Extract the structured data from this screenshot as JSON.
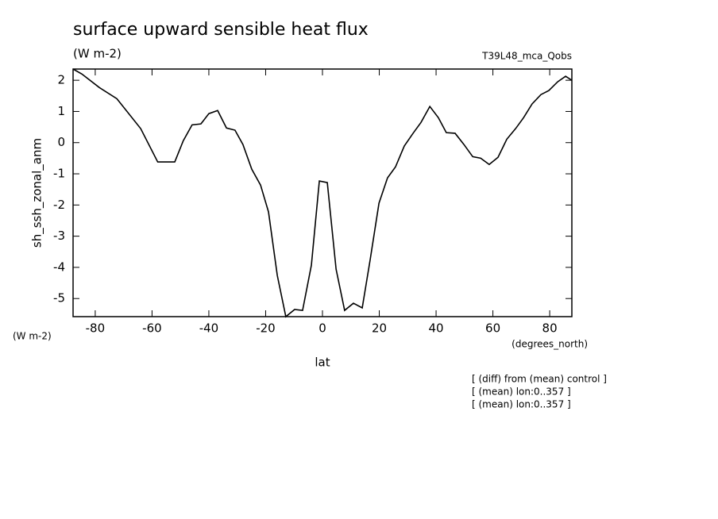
{
  "chart_data": {
    "type": "line",
    "title": "surface upward sensible heat flux",
    "units": "(W m-2)",
    "run_label": "T39L48_mca_Qobs",
    "y_label": "sh_ssh_zonal_anm",
    "y_units": "(W m-2)",
    "x_units": "(degrees_north)",
    "x_label": "lat",
    "notes": [
      "[ (diff) from (mean) control ]",
      "[ (mean) lon:0..357 ]",
      "[ (mean) lon:0..357 ]"
    ],
    "x": [
      -87.8,
      -84.7,
      -78.6,
      -72.4,
      -64,
      -58,
      -52,
      -49,
      -45.9,
      -42.8,
      -40,
      -36.9,
      -33.8,
      -30.8,
      -28,
      -24.9,
      -21.8,
      -19,
      -15.9,
      -12.9,
      -9.8,
      -7,
      -3.9,
      -1.1,
      1.7,
      4.8,
      7.8,
      10.9,
      14,
      16.8,
      19.9,
      22.9,
      25.7,
      28.8,
      31.9,
      34.7,
      37.8,
      40.8,
      43.6,
      46.7,
      49.8,
      52.9,
      55.7,
      58.7,
      61.8,
      64.9,
      68,
      70.8,
      73.8,
      76.9,
      79.7,
      82.8,
      85.6,
      87.8
    ],
    "series": [
      {
        "color": "#000000",
        "values": [
          2.36,
          2.2,
          1.77,
          1.41,
          0.45,
          -0.62,
          -0.62,
          0.06,
          0.57,
          0.6,
          0.93,
          1.03,
          0.47,
          0.4,
          -0.06,
          -0.85,
          -1.36,
          -2.22,
          -4.26,
          -5.58,
          -5.35,
          -5.38,
          -3.93,
          -1.23,
          -1.28,
          -4.06,
          -5.38,
          -5.15,
          -5.3,
          -3.75,
          -1.94,
          -1.13,
          -0.78,
          -0.11,
          0.3,
          0.65,
          1.16,
          0.8,
          0.32,
          0.3,
          -0.06,
          -0.45,
          -0.5,
          -0.7,
          -0.47,
          0.11,
          0.45,
          0.8,
          1.24,
          1.54,
          1.67,
          1.95,
          2.13,
          2.0
        ]
      }
    ],
    "xlim": [
      -87.8,
      87.8
    ],
    "xticks": [
      -80,
      -60,
      -40,
      -20,
      0,
      20,
      40,
      60,
      80
    ],
    "ylim": [
      -5.58,
      2.36
    ],
    "yticks": [
      -5,
      -4,
      -3,
      -2,
      -1,
      0,
      1,
      2
    ]
  }
}
